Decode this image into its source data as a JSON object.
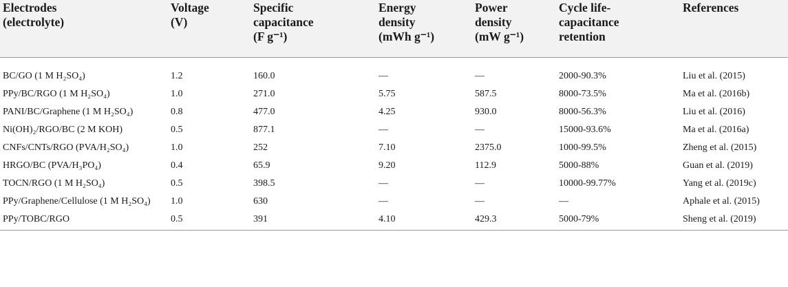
{
  "table": {
    "headers": [
      "Electrodes\n(electrolyte)",
      "Voltage\n(V)",
      "Specific\ncapacitance\n(F g⁻¹)",
      "Energy\ndensity\n(mWh g⁻¹)",
      "Power\ndensity\n(mW g⁻¹)",
      "Cycle life-\ncapacitance\nretention",
      "References"
    ],
    "rows": [
      [
        "BC/GO (1 M H₂SO₄)",
        "1.2",
        "160.0",
        "—",
        "—",
        "2000-90.3%",
        "Liu et al. (2015)"
      ],
      [
        "PPy/BC/RGO (1 M H₂SO₄)",
        "1.0",
        "271.0",
        "5.75",
        "587.5",
        "8000-73.5%",
        "Ma et al. (2016b)"
      ],
      [
        "PANI/BC/Graphene (1 M H₂SO₄)",
        "0.8",
        "477.0",
        "4.25",
        "930.0",
        "8000-56.3%",
        "Liu et al. (2016)"
      ],
      [
        "Ni(OH)₂/RGO/BC (2 M KOH)",
        "0.5",
        "877.1",
        "—",
        "—",
        "15000-93.6%",
        "Ma et al. (2016a)"
      ],
      [
        "CNFs/CNTs/RGO (PVA/H₂SO₄)",
        "1.0",
        "252",
        "7.10",
        "2375.0",
        "1000-99.5%",
        "Zheng et al. (2015)"
      ],
      [
        "HRGO/BC (PVA/H₃PO₄)",
        "0.4",
        "65.9",
        "9.20",
        "112.9",
        "5000-88%",
        "Guan et al. (2019)"
      ],
      [
        "TOCN/RGO (1 M H₂SO₄)",
        "0.5",
        "398.5",
        "—",
        "—",
        "10000-99.77%",
        "Yang et al. (2019c)"
      ],
      [
        "PPy/Graphene/Cellulose (1 M H₂SO₄)",
        "1.0",
        "630",
        "—",
        "—",
        "—",
        "Aphale et al. (2015)"
      ],
      [
        "PPy/TOBC/RGO",
        "0.5",
        "391",
        "4.10",
        "429.3",
        "5000-79%",
        "Sheng et al. (2019)"
      ]
    ]
  }
}
